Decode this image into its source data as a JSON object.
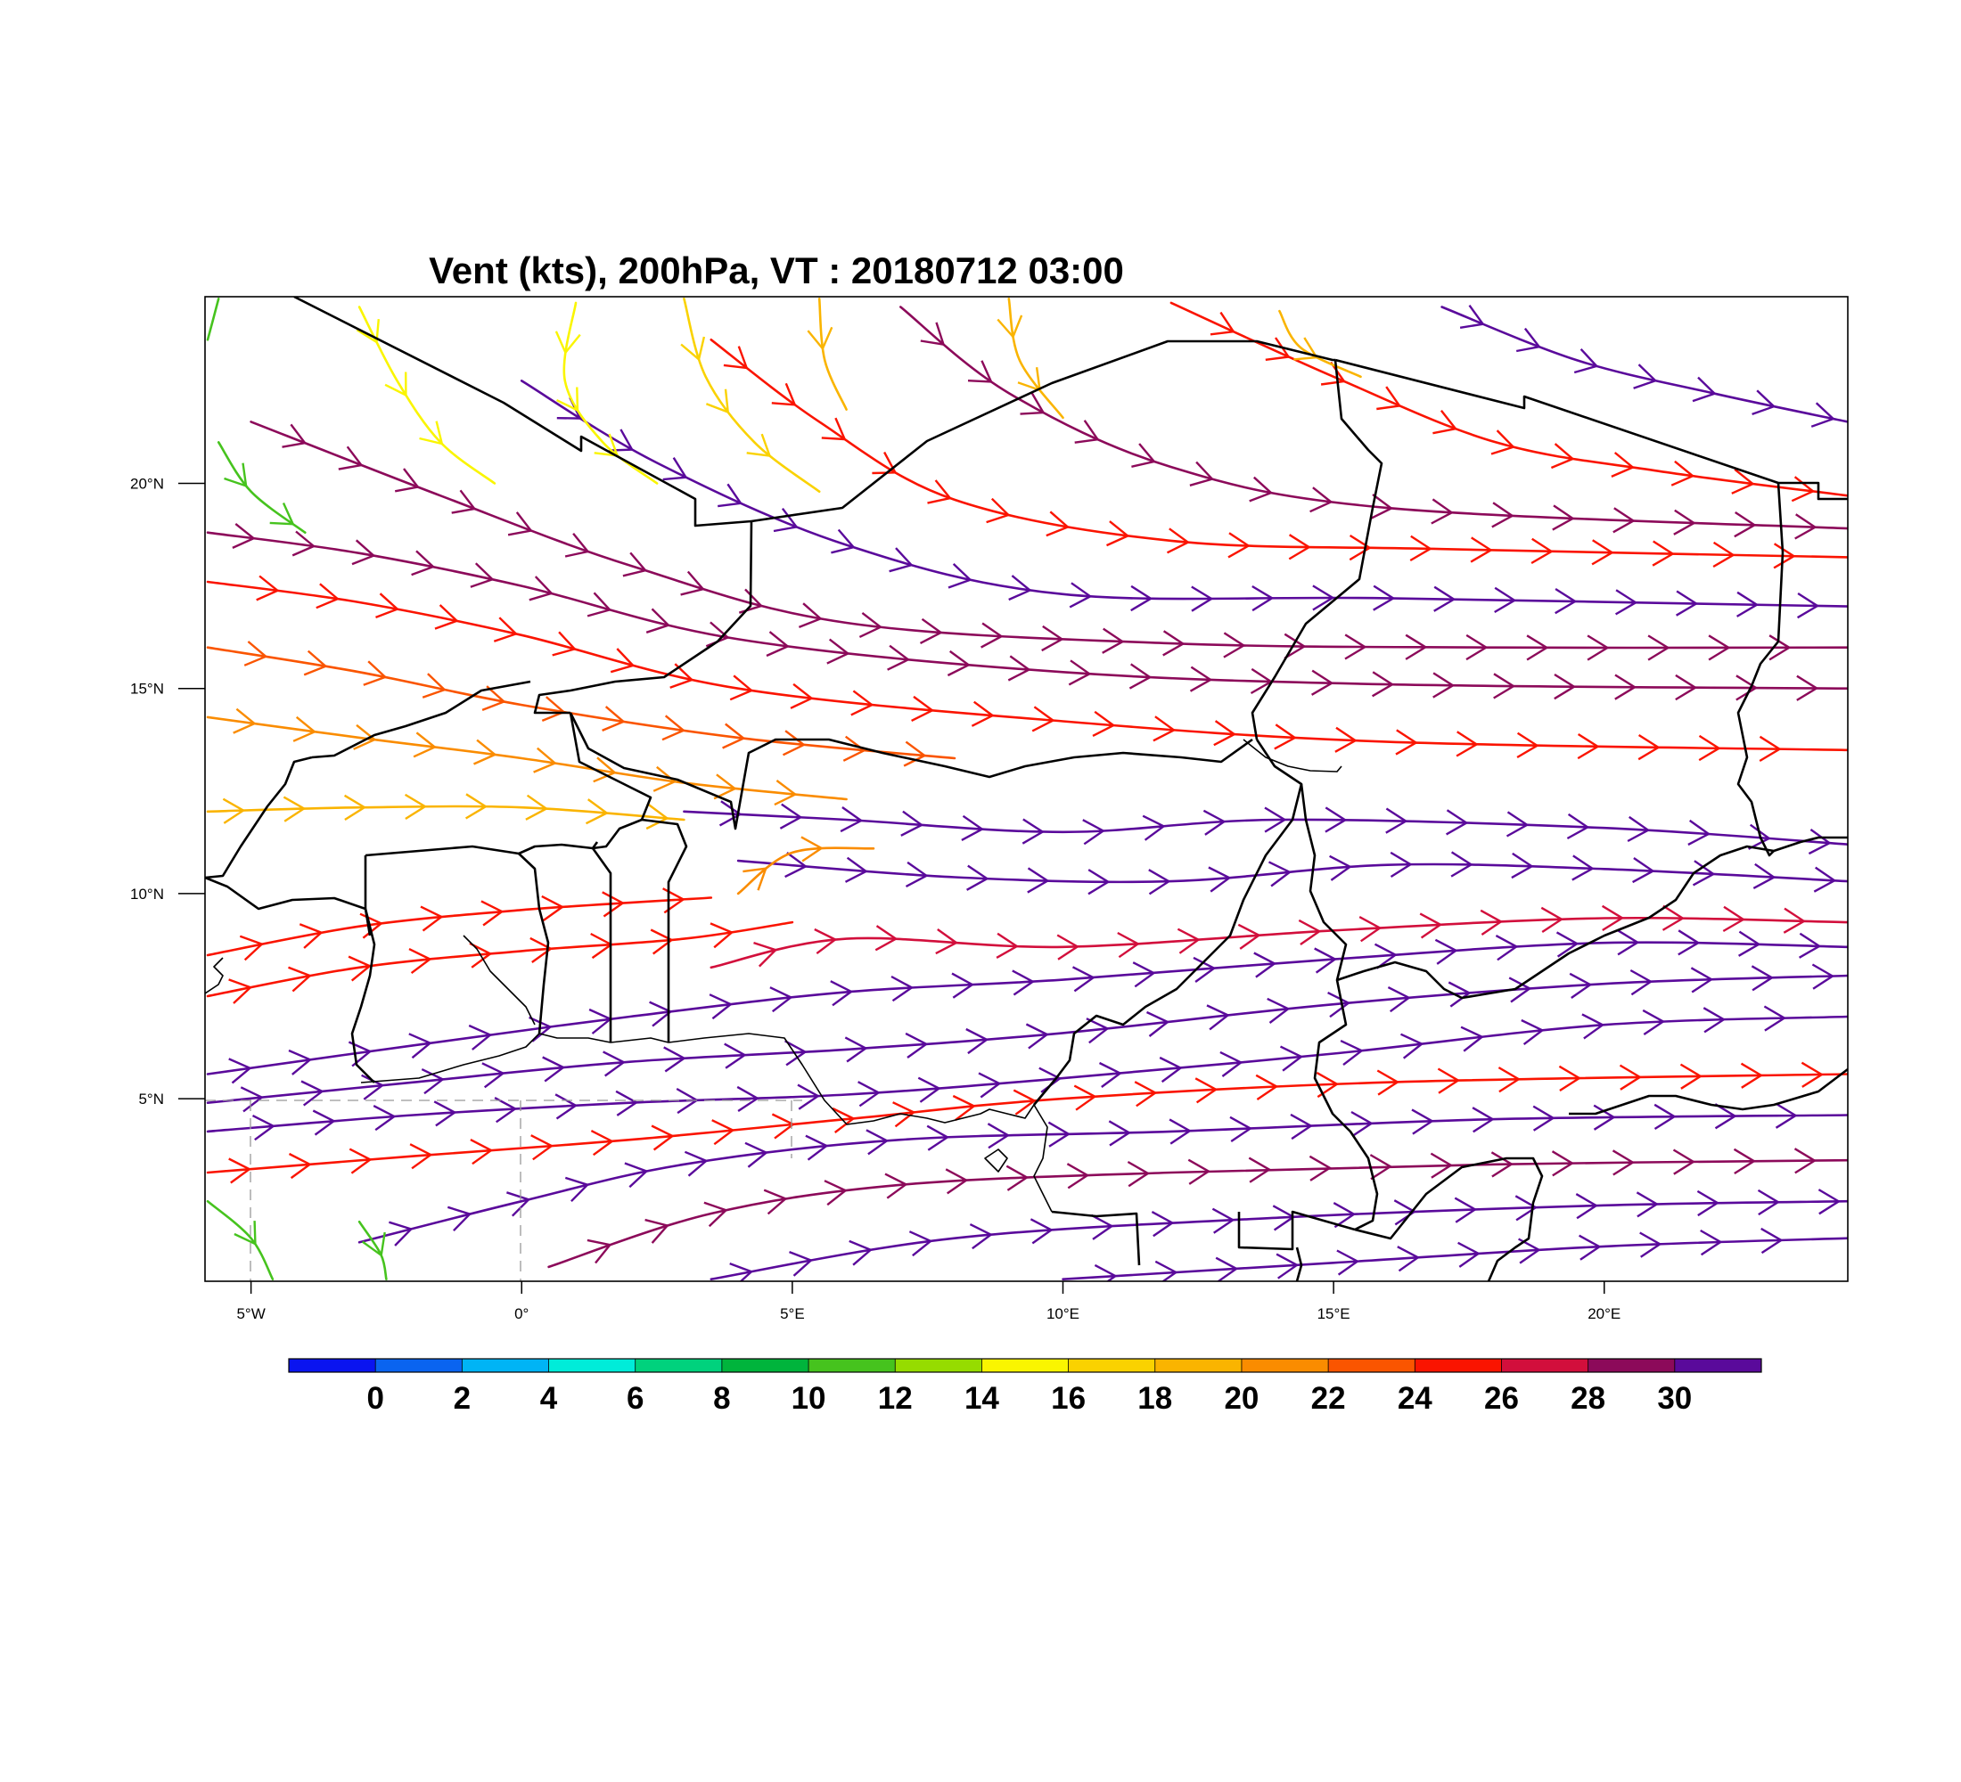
{
  "title": "Vent (kts), 200hPa, VT : 20180712  03:00",
  "map": {
    "lon_range": [
      -5.85,
      24.5
    ],
    "lat_range": [
      0.55,
      24.55
    ],
    "lon_ticks": [
      {
        "value": -5,
        "label": "5°W"
      },
      {
        "value": 0,
        "label": "0°"
      },
      {
        "value": 5,
        "label": "5°E"
      },
      {
        "value": 10,
        "label": "10°E"
      },
      {
        "value": 15,
        "label": "15°E"
      },
      {
        "value": 20,
        "label": "20°E"
      }
    ],
    "lat_ticks": [
      {
        "value": 5,
        "label": "5°N"
      },
      {
        "value": 10,
        "label": "10°N"
      },
      {
        "value": 15,
        "label": "15°N"
      },
      {
        "value": 20,
        "label": "20°N"
      }
    ],
    "border_color": "#000000"
  },
  "colorbar": {
    "labels": [
      "0",
      "2",
      "4",
      "6",
      "8",
      "10",
      "12",
      "14",
      "16",
      "18",
      "20",
      "22",
      "24",
      "26",
      "28",
      "30"
    ],
    "colors": [
      "#0a14f0",
      "#0a64f0",
      "#00b4f5",
      "#00ecd9",
      "#00d27d",
      "#00b43c",
      "#46c31e",
      "#96dc00",
      "#faf500",
      "#fad200",
      "#fab400",
      "#fa8c00",
      "#fa5500",
      "#fa1400",
      "#d20f3c",
      "#8c0a5a",
      "#5a0a9b"
    ]
  },
  "chart_data": {
    "type": "streamline",
    "title": "Vent (kts), 200hPa, VT : 20180712  03:00",
    "variable": "wind speed",
    "units": "kts",
    "level": "200hPa",
    "valid_time": "20180712  03:00",
    "x_range_deg_lon": [
      -5.85,
      24.5
    ],
    "y_range_deg_lat": [
      0.55,
      24.55
    ],
    "color_levels": [
      0,
      2,
      4,
      6,
      8,
      10,
      12,
      14,
      16,
      18,
      20,
      22,
      24,
      26,
      28,
      30
    ],
    "streamlines": [
      {
        "points": [
          [
            -5.8,
            12.0
          ],
          [
            -3.0,
            12.1
          ],
          [
            0.0,
            12.1
          ],
          [
            3.0,
            11.8
          ]
        ],
        "speed": 19
      },
      {
        "points": [
          [
            -5.8,
            14.3
          ],
          [
            -3.0,
            13.8
          ],
          [
            0.0,
            13.3
          ],
          [
            3.0,
            12.7
          ],
          [
            6.0,
            12.3
          ]
        ],
        "speed": 21
      },
      {
        "points": [
          [
            -5.8,
            16.0
          ],
          [
            -3.0,
            15.4
          ],
          [
            0.0,
            14.6
          ],
          [
            4.0,
            13.8
          ],
          [
            8.0,
            13.3
          ]
        ],
        "speed": 22
      },
      {
        "points": [
          [
            -5.8,
            17.6
          ],
          [
            -3.0,
            17.1
          ],
          [
            0.0,
            16.3
          ],
          [
            4.0,
            15.0
          ],
          [
            10.0,
            14.2
          ],
          [
            16.0,
            13.7
          ],
          [
            24.5,
            13.5
          ]
        ],
        "speed": 25
      },
      {
        "points": [
          [
            -5.8,
            18.8
          ],
          [
            -3.0,
            18.3
          ],
          [
            0.0,
            17.5
          ],
          [
            4.0,
            16.2
          ],
          [
            10.0,
            15.4
          ],
          [
            16.0,
            15.1
          ],
          [
            24.5,
            15.0
          ]
        ],
        "speed": 29
      },
      {
        "points": [
          [
            -5.0,
            21.5
          ],
          [
            -1.5,
            19.7
          ],
          [
            2.0,
            18.0
          ],
          [
            6.0,
            16.6
          ],
          [
            12.0,
            16.1
          ],
          [
            18.0,
            16.0
          ],
          [
            24.5,
            16.0
          ]
        ],
        "speed": 28
      },
      {
        "points": [
          [
            0.0,
            22.5
          ],
          [
            2.5,
            20.5
          ],
          [
            6.0,
            18.5
          ],
          [
            10.0,
            17.3
          ],
          [
            16.0,
            17.2
          ],
          [
            24.5,
            17.0
          ]
        ],
        "speed": 31
      },
      {
        "points": [
          [
            3.5,
            23.5
          ],
          [
            5.5,
            21.5
          ],
          [
            8.0,
            19.6
          ],
          [
            12.0,
            18.6
          ],
          [
            17.0,
            18.4
          ],
          [
            24.5,
            18.2
          ]
        ],
        "speed": 25
      },
      {
        "points": [
          [
            7.0,
            24.3
          ],
          [
            9.0,
            22.2
          ],
          [
            12.0,
            20.4
          ],
          [
            16.0,
            19.4
          ],
          [
            24.5,
            18.9
          ]
        ],
        "speed": 29
      },
      {
        "points": [
          [
            12.0,
            24.4
          ],
          [
            15.0,
            22.6
          ],
          [
            18.0,
            21.0
          ],
          [
            21.0,
            20.3
          ],
          [
            24.5,
            19.7
          ]
        ],
        "speed": 24
      },
      {
        "points": [
          [
            17.0,
            24.3
          ],
          [
            19.5,
            23.0
          ],
          [
            22.0,
            22.2
          ],
          [
            24.5,
            21.5
          ]
        ],
        "speed": 31
      },
      {
        "points": [
          [
            3.0,
            12.0
          ],
          [
            6.0,
            11.8
          ],
          [
            10.0,
            11.5
          ],
          [
            14.0,
            11.8
          ],
          [
            20.0,
            11.6
          ],
          [
            24.5,
            11.2
          ]
        ],
        "speed": 30
      },
      {
        "points": [
          [
            4.0,
            10.8
          ],
          [
            8.0,
            10.4
          ],
          [
            12.0,
            10.3
          ],
          [
            16.0,
            10.7
          ],
          [
            20.0,
            10.6
          ],
          [
            24.5,
            10.3
          ]
        ],
        "speed": 30
      },
      {
        "points": [
          [
            -5.8,
            7.5
          ],
          [
            -3.0,
            8.2
          ],
          [
            0.0,
            8.6
          ],
          [
            3.0,
            8.9
          ],
          [
            5.0,
            9.3
          ]
        ],
        "speed": 25
      },
      {
        "points": [
          [
            -5.8,
            8.5
          ],
          [
            -3.0,
            9.2
          ],
          [
            0.0,
            9.6
          ],
          [
            3.5,
            9.9
          ]
        ],
        "speed": 24
      },
      {
        "points": [
          [
            3.5,
            8.2
          ],
          [
            6.0,
            8.9
          ],
          [
            10.0,
            8.7
          ],
          [
            15.0,
            9.1
          ],
          [
            20.0,
            9.4
          ],
          [
            24.5,
            9.3
          ]
        ],
        "speed": 26
      },
      {
        "points": [
          [
            -5.8,
            5.6
          ],
          [
            -2.0,
            6.3
          ],
          [
            2.0,
            7.0
          ],
          [
            6.0,
            7.6
          ],
          [
            10.0,
            7.9
          ],
          [
            15.0,
            8.4
          ],
          [
            20.0,
            8.8
          ],
          [
            24.5,
            8.7
          ]
        ],
        "speed": 30
      },
      {
        "points": [
          [
            -5.8,
            4.9
          ],
          [
            -2.0,
            5.4
          ],
          [
            2.0,
            5.9
          ],
          [
            6.0,
            6.2
          ],
          [
            10.0,
            6.6
          ],
          [
            15.0,
            7.3
          ],
          [
            20.0,
            7.8
          ],
          [
            24.5,
            8.0
          ]
        ],
        "speed": 30
      },
      {
        "points": [
          [
            -5.8,
            4.2
          ],
          [
            -2.0,
            4.6
          ],
          [
            2.0,
            4.9
          ],
          [
            6.0,
            5.1
          ],
          [
            10.0,
            5.5
          ],
          [
            15.0,
            6.1
          ],
          [
            20.0,
            6.8
          ],
          [
            24.5,
            7.0
          ]
        ],
        "speed": 30
      },
      {
        "points": [
          [
            -5.8,
            3.2
          ],
          [
            -2.0,
            3.6
          ],
          [
            2.0,
            4.0
          ],
          [
            6.0,
            4.5
          ],
          [
            10.0,
            5.0
          ],
          [
            16.0,
            5.4
          ],
          [
            24.5,
            5.6
          ]
        ],
        "speed": 25
      },
      {
        "points": [
          [
            -3.0,
            1.5
          ],
          [
            0.0,
            2.5
          ],
          [
            3.0,
            3.4
          ],
          [
            7.0,
            4.0
          ],
          [
            12.0,
            4.2
          ],
          [
            18.0,
            4.5
          ],
          [
            24.5,
            4.6
          ]
        ],
        "speed": 30
      },
      {
        "points": [
          [
            0.5,
            0.9
          ],
          [
            3.5,
            2.2
          ],
          [
            7.0,
            2.9
          ],
          [
            12.0,
            3.2
          ],
          [
            18.0,
            3.4
          ],
          [
            24.5,
            3.5
          ]
        ],
        "speed": 29
      },
      {
        "points": [
          [
            3.5,
            0.6
          ],
          [
            8.0,
            1.6
          ],
          [
            14.0,
            2.1
          ],
          [
            20.0,
            2.4
          ],
          [
            24.5,
            2.5
          ]
        ],
        "speed": 30
      },
      {
        "points": [
          [
            10.0,
            0.6
          ],
          [
            15.0,
            1.0
          ],
          [
            20.0,
            1.4
          ],
          [
            24.5,
            1.6
          ]
        ],
        "speed": 30
      },
      {
        "points": [
          [
            -5.8,
            2.5
          ],
          [
            -5.0,
            1.6
          ],
          [
            -4.6,
            0.6
          ]
        ],
        "speed": 11
      },
      {
        "points": [
          [
            -3.0,
            2.0
          ],
          [
            -2.6,
            1.2
          ],
          [
            -2.5,
            0.6
          ]
        ],
        "speed": 11
      },
      {
        "points": [
          [
            -5.6,
            21.0
          ],
          [
            -5.0,
            19.8
          ],
          [
            -4.0,
            18.8
          ]
        ],
        "speed": 11
      },
      {
        "points": [
          [
            -5.6,
            24.5
          ],
          [
            -5.8,
            23.5
          ]
        ],
        "speed": 11
      },
      {
        "points": [
          [
            -3.0,
            24.3
          ],
          [
            -2.3,
            22.5
          ],
          [
            -1.5,
            21.0
          ],
          [
            -0.5,
            20.0
          ]
        ],
        "speed": 15
      },
      {
        "points": [
          [
            1.0,
            24.4
          ],
          [
            0.8,
            22.5
          ],
          [
            1.5,
            21.0
          ],
          [
            2.5,
            20.0
          ]
        ],
        "speed": 15
      },
      {
        "points": [
          [
            3.0,
            24.5
          ],
          [
            3.4,
            22.6
          ],
          [
            4.3,
            21.0
          ],
          [
            5.5,
            19.8
          ]
        ],
        "speed": 17
      },
      {
        "points": [
          [
            9.0,
            24.5
          ],
          [
            9.2,
            23.0
          ],
          [
            10.0,
            21.6
          ]
        ],
        "speed": 19
      },
      {
        "points": [
          [
            5.5,
            24.5
          ],
          [
            5.6,
            23.0
          ],
          [
            6.0,
            21.8
          ]
        ],
        "speed": 18
      },
      {
        "points": [
          [
            14.0,
            24.2
          ],
          [
            14.4,
            23.3
          ],
          [
            15.5,
            22.6
          ]
        ],
        "speed": 18
      },
      {
        "points": [
          [
            4.0,
            10.0
          ],
          [
            5.0,
            11.0
          ],
          [
            6.5,
            11.1
          ]
        ],
        "speed": 21
      }
    ]
  }
}
